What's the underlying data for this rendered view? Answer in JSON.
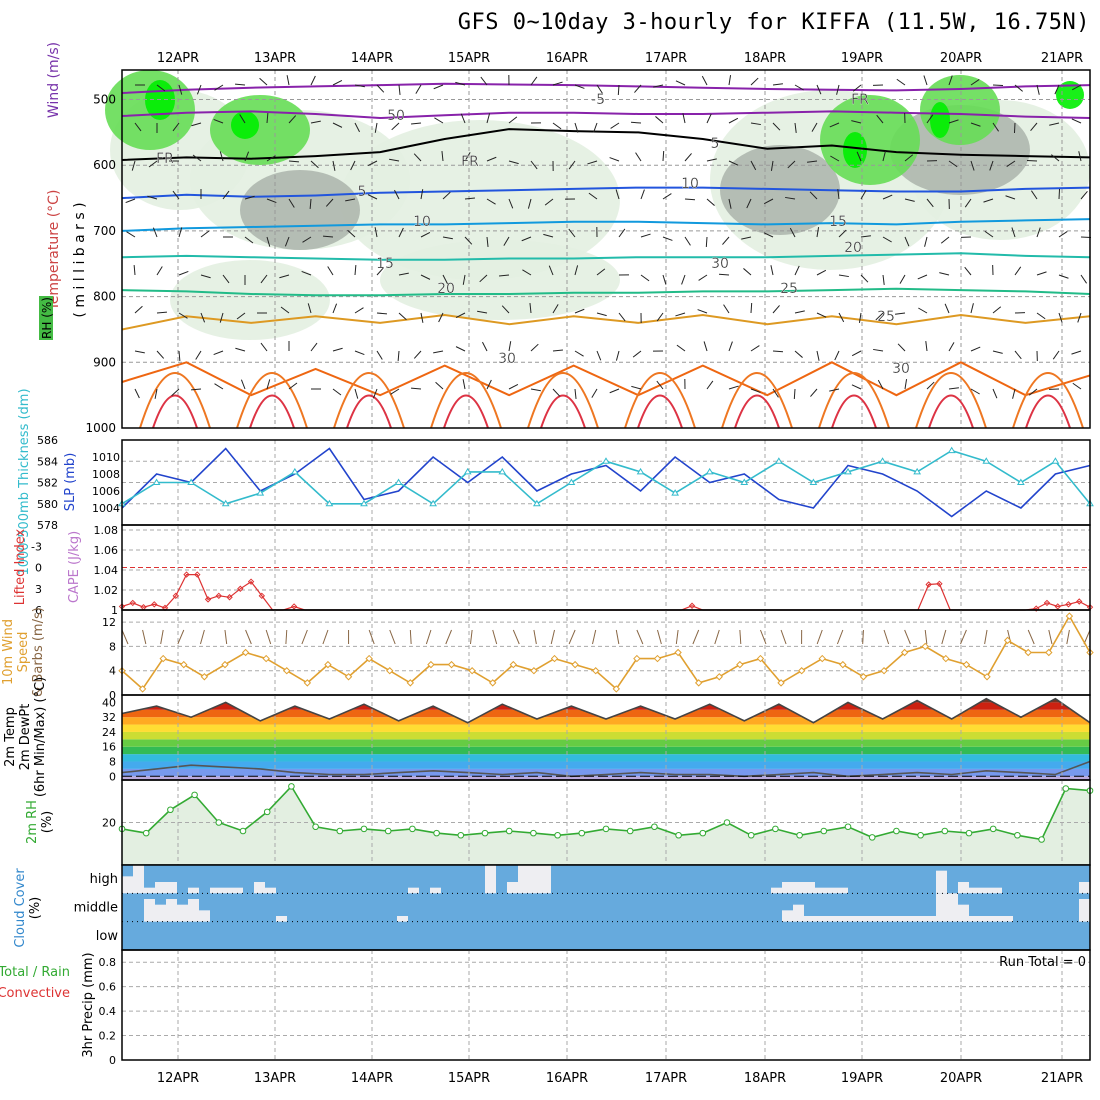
{
  "title": "GFS 0~10day 3-hourly for KIFFA (11.5W, 16.75N)",
  "date_labels": [
    "12APR",
    "13APR",
    "14APR",
    "15APR",
    "16APR",
    "17APR",
    "18APR",
    "19APR",
    "20APR",
    "21APR"
  ],
  "chart_data": [
    {
      "type": "heatmap",
      "panel": "upper-air",
      "ylabels": [
        "Temperature (°C)",
        "Wind (m/s)",
        "RH (%)",
        "( m i l l i b a r s )"
      ],
      "y_ticks": [
        "500",
        "600",
        "700",
        "800",
        "900",
        "1000"
      ],
      "colors": {
        "rh_light": "#e3efe1",
        "rh_mid": "#aeb7ae",
        "rh_green": "#66dd55",
        "rh_bright": "#00ee00"
      },
      "isotherm_labels": [
        "-5",
        "FR",
        "FR",
        "FR",
        "5",
        "5",
        "10",
        "10",
        "15",
        "15",
        "20",
        "20",
        "25",
        "25",
        "30",
        "30",
        "30",
        "50"
      ],
      "isotherms": [
        {
          "label": "-5",
          "color": "#8822aa",
          "values": [
            490,
            485,
            482,
            480,
            478,
            476,
            477,
            478,
            480,
            482,
            484,
            485,
            486,
            484,
            480,
            478
          ]
        },
        {
          "label": "-5",
          "color": "#8822aa",
          "values": [
            525,
            520,
            518,
            522,
            528,
            524,
            520,
            520,
            522,
            522,
            520,
            518,
            520,
            522,
            526,
            528
          ]
        },
        {
          "label": "FR",
          "color": "#000000",
          "values": [
            592,
            588,
            590,
            586,
            580,
            560,
            545,
            548,
            550,
            560,
            575,
            570,
            580,
            584,
            586,
            588
          ]
        },
        {
          "label": "5",
          "color": "#2255dd",
          "values": [
            650,
            645,
            648,
            646,
            642,
            640,
            638,
            636,
            634,
            634,
            636,
            638,
            640,
            640,
            636,
            634
          ]
        },
        {
          "label": "10",
          "color": "#1199dd",
          "values": [
            700,
            696,
            694,
            692,
            690,
            690,
            688,
            686,
            686,
            688,
            690,
            688,
            690,
            686,
            684,
            682
          ]
        },
        {
          "label": "15",
          "color": "#22bbaa",
          "values": [
            740,
            738,
            740,
            742,
            744,
            744,
            742,
            742,
            740,
            740,
            740,
            738,
            736,
            734,
            738,
            740
          ]
        },
        {
          "label": "20",
          "color": "#22bb88",
          "values": [
            790,
            792,
            796,
            798,
            798,
            796,
            796,
            794,
            794,
            792,
            792,
            790,
            788,
            790,
            792,
            796
          ]
        },
        {
          "label": "25",
          "color": "#dd9922",
          "values": [
            850,
            830,
            840,
            830,
            840,
            828,
            842,
            830,
            840,
            828,
            842,
            830,
            842,
            828,
            840,
            830
          ]
        },
        {
          "label": "30",
          "color": "#ee6611",
          "values": [
            930,
            900,
            950,
            910,
            950,
            905,
            950,
            905,
            950,
            905,
            950,
            900,
            950,
            900,
            950,
            920
          ]
        }
      ]
    },
    {
      "type": "line",
      "panel": "thickness-slp",
      "ylabels": [
        "1000-500mb Thickness (dm)",
        "SLP (mb)"
      ],
      "left_ticks": [
        "578",
        "580",
        "582",
        "584",
        "586"
      ],
      "right_ticks": [
        "1004",
        "1006",
        "1008",
        "1010"
      ],
      "series": [
        {
          "name": "SLP (mb)",
          "color": "#2244cc",
          "y_range": [
            1002,
            1012
          ],
          "values": [
            1004,
            1008,
            1007,
            1011,
            1006,
            1008,
            1011,
            1005,
            1006,
            1010,
            1007,
            1010,
            1006,
            1008,
            1009,
            1006,
            1010,
            1007,
            1008,
            1005,
            1004,
            1009,
            1008,
            1006,
            1003,
            1006,
            1004,
            1008,
            1009
          ]
        },
        {
          "name": "1000-500mb Thickness (dm)",
          "color": "#33bbcc",
          "y_range": [
            578,
            586
          ],
          "values": [
            580,
            582,
            582,
            580,
            581,
            583,
            580,
            580,
            582,
            580,
            583,
            583,
            580,
            582,
            584,
            583,
            581,
            583,
            582,
            584,
            582,
            583,
            584,
            583,
            585,
            584,
            582,
            584,
            580
          ]
        }
      ]
    },
    {
      "type": "line",
      "panel": "cape-li",
      "ylabels": [
        "Lifted Index",
        "CAPE (J/kg)"
      ],
      "left_ticks": [
        "-3",
        "0",
        "3",
        "6"
      ],
      "right_ticks": [
        "1",
        "1.02",
        "1.04",
        "1.06",
        "1.08"
      ],
      "series": [
        {
          "name": "Lifted Index",
          "color": "#dd3333",
          "y_range": [
            6,
            -6
          ],
          "values": [
            5.5,
            5,
            5.6,
            5.2,
            5.7,
            4,
            1,
            1,
            4.5,
            4,
            4.2,
            3,
            2,
            4,
            6,
            6,
            5.5,
            6,
            6,
            6,
            6,
            6,
            6,
            6,
            6,
            6,
            6,
            6,
            6,
            6,
            6,
            6,
            6,
            6,
            6,
            6,
            6,
            6,
            6,
            6,
            6,
            6,
            6,
            6,
            6,
            6,
            6,
            6,
            6,
            6,
            6,
            6,
            6,
            5.4,
            6,
            6,
            6,
            6,
            6,
            6,
            6,
            6,
            6,
            6,
            6,
            6,
            6,
            6,
            6,
            6,
            6,
            6,
            6,
            6,
            6,
            2.4,
            2.3,
            6,
            6,
            6,
            6,
            6,
            6,
            6,
            6,
            5.8,
            5,
            5.5,
            5.2,
            4.8,
            5.6
          ]
        }
      ]
    },
    {
      "type": "line",
      "panel": "wind10m",
      "ylabels": [
        "10m Wind",
        "Speed",
        "& Barbs (m/s)"
      ],
      "left_ticks": [
        "0",
        "4",
        "8",
        "12"
      ],
      "series": [
        {
          "name": "10m Wind Speed",
          "color": "#e0a030",
          "y_range": [
            0,
            14
          ],
          "values": [
            4,
            1,
            6,
            5,
            3,
            5,
            7,
            6,
            4,
            2,
            5,
            3,
            6,
            4,
            2,
            5,
            5,
            4,
            2,
            5,
            4,
            6,
            5,
            4,
            1,
            6,
            6,
            7,
            2,
            3,
            5,
            6,
            2,
            4,
            6,
            5,
            3,
            4,
            7,
            8,
            6,
            5,
            3,
            9,
            7,
            7,
            13,
            7
          ]
        }
      ]
    },
    {
      "type": "area",
      "panel": "temp2m",
      "ylabels": [
        "2m Temp",
        "2m DewPt",
        "(6hr Min/Max) (°C)"
      ],
      "left_ticks": [
        "0",
        "8",
        "16",
        "24",
        "32",
        "40"
      ],
      "series": [
        {
          "name": "2m Temp",
          "values": [
            34,
            38,
            32,
            40,
            30,
            38,
            31,
            39,
            30,
            38,
            29,
            39,
            31,
            38,
            31,
            38,
            31,
            39,
            30,
            39,
            29,
            40,
            31,
            41,
            31,
            42,
            32,
            42,
            29
          ]
        },
        {
          "name": "2m DewPt",
          "values": [
            2,
            4,
            6,
            5,
            4,
            2,
            1,
            1,
            2,
            3,
            2,
            1,
            2,
            0,
            1,
            2,
            1,
            1,
            0,
            1,
            2,
            0,
            1,
            2,
            1,
            3,
            2,
            1,
            8
          ]
        }
      ]
    },
    {
      "type": "area",
      "panel": "rh2m",
      "ylabels": [
        "2m RH",
        "(%)"
      ],
      "left_ticks": [
        "20"
      ],
      "series": [
        {
          "name": "2m RH",
          "color": "#33aa33",
          "y_range": [
            0,
            40
          ],
          "values": [
            17,
            15,
            26,
            33,
            20,
            16,
            25,
            37,
            18,
            16,
            17,
            16,
            17,
            15,
            14,
            15,
            16,
            15,
            14,
            15,
            17,
            16,
            18,
            14,
            15,
            20,
            14,
            17,
            14,
            16,
            18,
            13,
            16,
            14,
            16,
            15,
            17,
            14,
            12,
            36,
            35
          ]
        }
      ]
    },
    {
      "type": "bar",
      "panel": "cloud",
      "ylabels": [
        "Cloud Cover",
        "(%)"
      ],
      "levels": [
        "high",
        "middle",
        "low"
      ],
      "series": [
        {
          "name": "high",
          "values": [
            60,
            100,
            20,
            40,
            40,
            0,
            20,
            0,
            20,
            20,
            20,
            0,
            40,
            20,
            0,
            0,
            0,
            0,
            0,
            0,
            0,
            0,
            0,
            0,
            0,
            0,
            20,
            0,
            20,
            0,
            0,
            0,
            0,
            100,
            0,
            40,
            100,
            100,
            100,
            0,
            0,
            0,
            0,
            0,
            0,
            0,
            0,
            0,
            0,
            0,
            0,
            0,
            0,
            0,
            0,
            0,
            0,
            0,
            0,
            20,
            40,
            40,
            40,
            20,
            20,
            20,
            0,
            0,
            0,
            0,
            0,
            0,
            0,
            0,
            80,
            0,
            40,
            20,
            20,
            20,
            0,
            0,
            0,
            0,
            0,
            0,
            0,
            40
          ]
        },
        {
          "name": "middle",
          "values": [
            0,
            0,
            80,
            60,
            80,
            60,
            80,
            40,
            0,
            0,
            0,
            0,
            0,
            0,
            20,
            0,
            0,
            0,
            0,
            0,
            0,
            0,
            0,
            0,
            0,
            20,
            0,
            0,
            0,
            0,
            0,
            0,
            0,
            0,
            0,
            0,
            0,
            0,
            0,
            0,
            0,
            0,
            0,
            0,
            0,
            0,
            0,
            0,
            0,
            0,
            0,
            0,
            0,
            0,
            0,
            0,
            0,
            0,
            0,
            0,
            40,
            60,
            20,
            20,
            20,
            20,
            20,
            20,
            20,
            20,
            20,
            20,
            20,
            20,
            100,
            100,
            60,
            20,
            20,
            20,
            20,
            0,
            0,
            0,
            0,
            0,
            0,
            80
          ]
        },
        {
          "name": "low",
          "values": []
        }
      ]
    },
    {
      "type": "bar",
      "panel": "precip",
      "ylabels": [
        "Total / Rain",
        "Convective",
        "3hr Precip (mm)"
      ],
      "left_ticks": [
        "0",
        "0.2",
        "0.4",
        "0.6",
        "0.8"
      ],
      "annotation": "Run Total = 0",
      "series": [
        {
          "name": "3hr Precip",
          "values": []
        }
      ]
    }
  ]
}
